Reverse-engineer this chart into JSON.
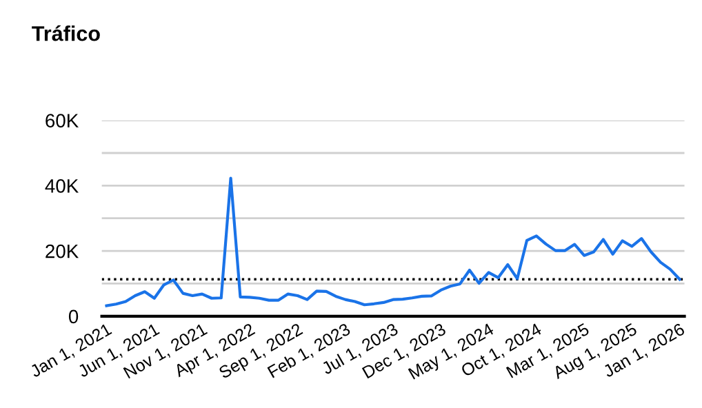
{
  "chart_data": {
    "type": "line",
    "title": "Tráfico",
    "categories": [
      "Jan 1, 2021",
      null,
      null,
      null,
      null,
      "Jun 1, 2021",
      null,
      null,
      null,
      null,
      "Nov 1, 2021",
      null,
      null,
      null,
      null,
      "Apr 1, 2022",
      null,
      null,
      null,
      null,
      "Sep 1, 2022",
      null,
      null,
      null,
      null,
      "Feb 1, 2023",
      null,
      null,
      null,
      null,
      "Jul 1, 2023",
      null,
      null,
      null,
      null,
      "Dec 1, 2023",
      null,
      null,
      null,
      null,
      "May 1, 2024",
      null,
      null,
      null,
      null,
      "Oct 1, 2024",
      null,
      null,
      null,
      null,
      "Mar 1, 2025",
      null,
      null,
      null,
      null,
      "Aug 1, 2025",
      null,
      null,
      null,
      null,
      "Jan 1, 2026"
    ],
    "series": [
      {
        "color": "#1a73e8",
        "values": [
          3200,
          3700,
          4500,
          6300,
          7500,
          5500,
          9600,
          11100,
          7000,
          6300,
          6800,
          5500,
          5600,
          42300,
          5900,
          5800,
          5500,
          4900,
          4900,
          6800,
          6300,
          5100,
          7700,
          7600,
          6100,
          5100,
          4500,
          3500,
          3800,
          4200,
          5100,
          5200,
          5600,
          6100,
          6200,
          8000,
          9200,
          9900,
          14100,
          10100,
          13400,
          11800,
          15800,
          11500,
          23200,
          24600,
          22100,
          20100,
          20100,
          22000,
          18600,
          19700,
          23500,
          19000,
          23100,
          21400,
          23800,
          19700,
          16500,
          14400,
          11300
        ]
      }
    ],
    "ylim": [
      0,
      60000
    ],
    "yticks": [
      {
        "value": 0,
        "label": "0"
      },
      {
        "value": 10000,
        "label": null
      },
      {
        "value": 20000,
        "label": "20K"
      },
      {
        "value": 30000,
        "label": null
      },
      {
        "value": 40000,
        "label": "40K"
      },
      {
        "value": 50000,
        "label": null
      },
      {
        "value": 60000,
        "label": "60K"
      }
    ],
    "grid": "y",
    "legend": false,
    "marker": "none",
    "line_style": "solid",
    "ref_lines": [
      {
        "axis": "y",
        "value": 11300,
        "label": null,
        "color": "#000000",
        "line_style": "dotted"
      }
    ]
  }
}
